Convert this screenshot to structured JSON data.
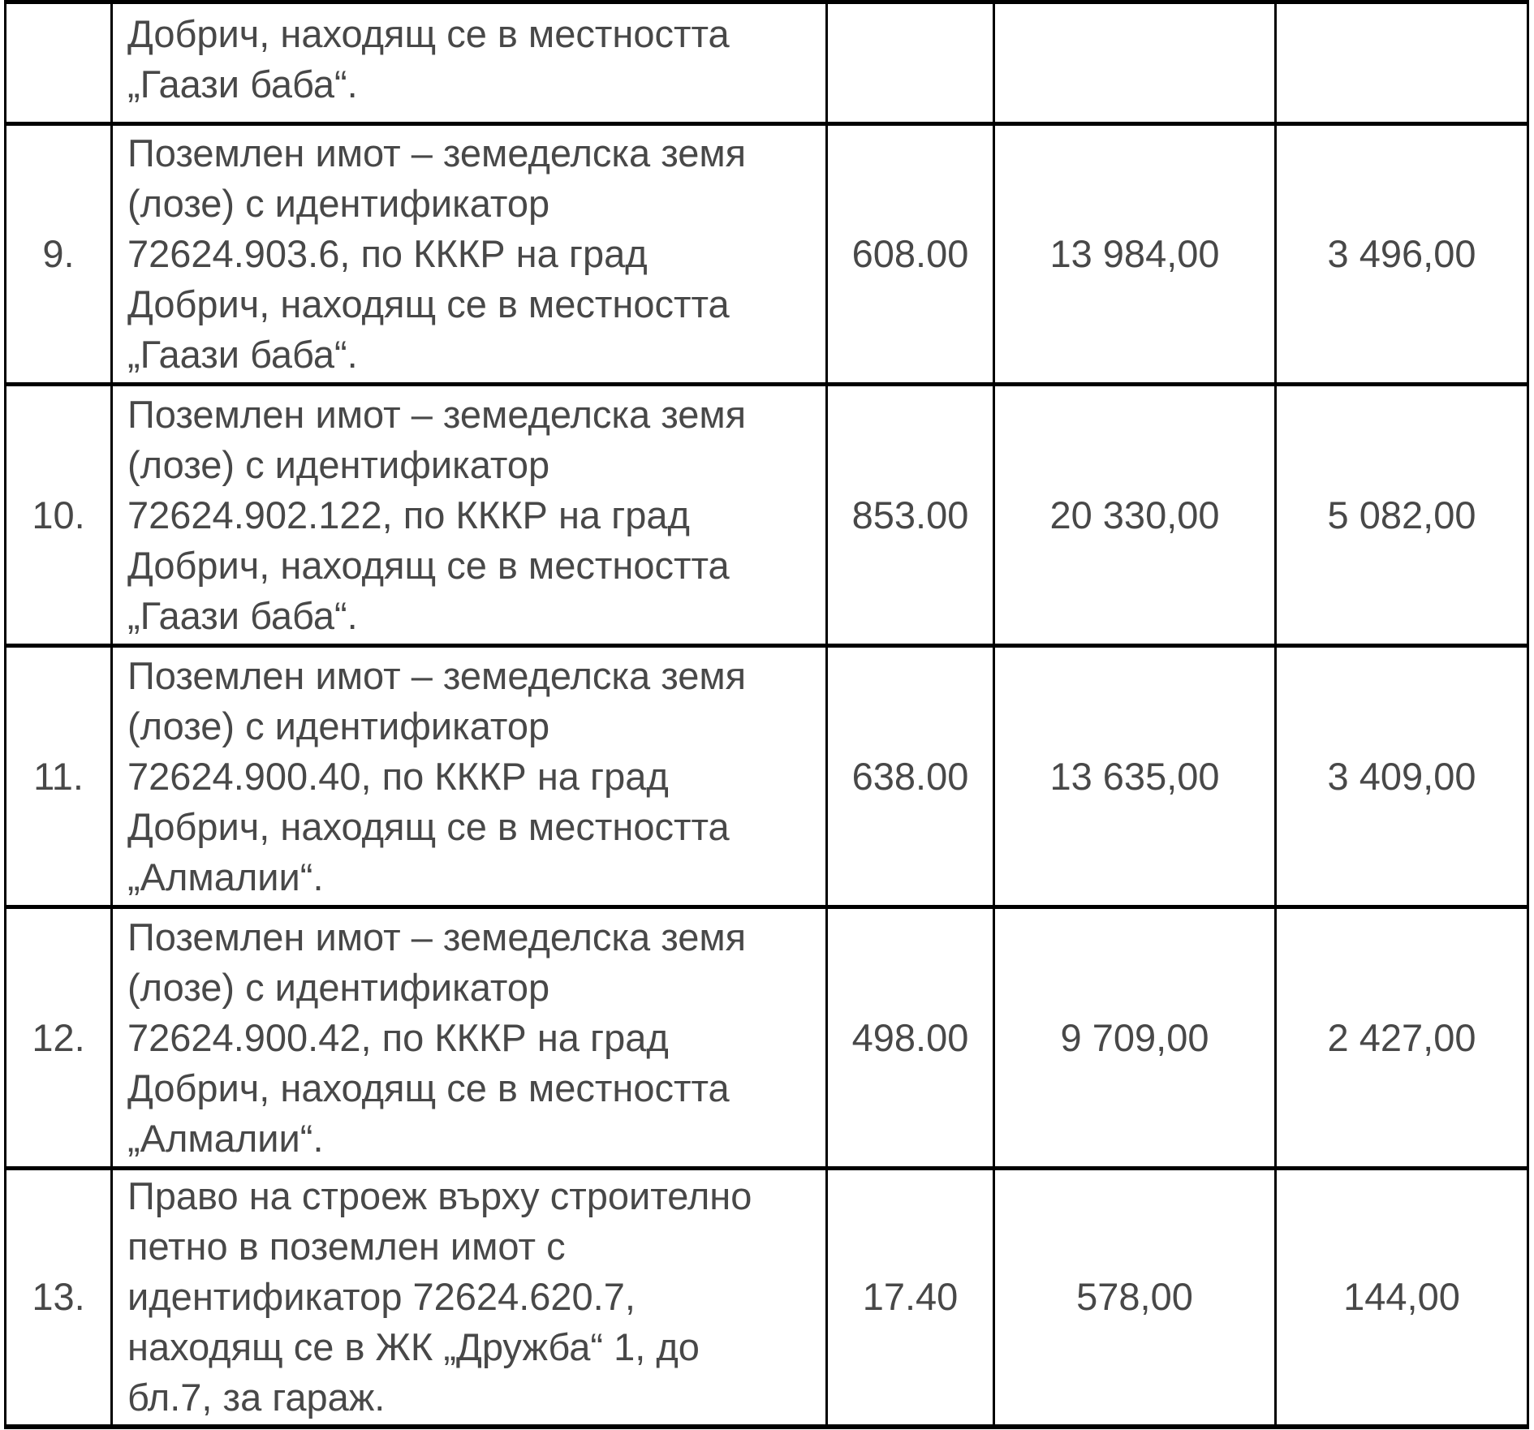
{
  "colors": {
    "text": "#484848",
    "border": "#000000",
    "background": "#ffffff"
  },
  "table": {
    "partial_row": {
      "number": "",
      "description_lines": [
        "Добрич, находящ се в местността",
        "„Гаази баба“."
      ],
      "area": "",
      "value": "",
      "tax_value": ""
    },
    "rows": [
      {
        "number": "9.",
        "description_lines": [
          "Поземлен имот – земеделска земя",
          "(лозе) с идентификатор",
          "72624.903.6, по КККР на град",
          "Добрич, находящ се в местността",
          "„Гаази баба“."
        ],
        "area": "608.00",
        "value": "13 984,00",
        "tax_value": "3 496,00"
      },
      {
        "number": "10.",
        "description_lines": [
          "Поземлен имот – земеделска земя",
          "(лозе) с идентификатор",
          "72624.902.122, по КККР на град",
          "Добрич, находящ се в местността",
          "„Гаази баба“."
        ],
        "area": "853.00",
        "value": "20 330,00",
        "tax_value": "5 082,00"
      },
      {
        "number": "11.",
        "description_lines": [
          "Поземлен имот – земеделска земя",
          "(лозе) с идентификатор",
          "72624.900.40, по КККР на град",
          "Добрич, находящ се в местността",
          "„Алмалии“."
        ],
        "area": "638.00",
        "value": "13 635,00",
        "tax_value": "3 409,00"
      },
      {
        "number": "12.",
        "description_lines": [
          "Поземлен имот – земеделска земя",
          "(лозе) с идентификатор",
          "72624.900.42, по КККР на град",
          "Добрич, находящ се в местността",
          "„Алмалии“."
        ],
        "area": "498.00",
        "value": "9 709,00",
        "tax_value": "2 427,00"
      },
      {
        "number": "13.",
        "description_lines": [
          "Право на строеж върху строително",
          "петно в поземлен имот с",
          "идентификатор 72624.620.7,",
          "находящ се в ЖК „Дружба“ 1, до",
          "бл.7, за гараж."
        ],
        "area": "17.40",
        "value": "578,00",
        "tax_value": "144,00"
      }
    ]
  }
}
